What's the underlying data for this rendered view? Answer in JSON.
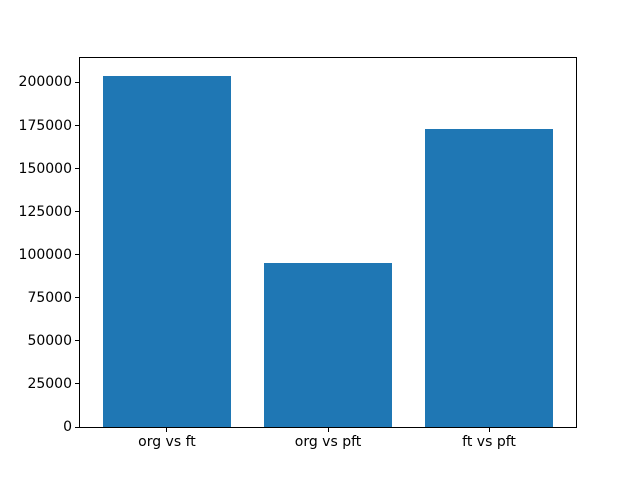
{
  "figure": {
    "background_color": "#ffffff",
    "spine_color": "#000000",
    "text_color": "#000000"
  },
  "chart_data": {
    "type": "bar",
    "title": "",
    "xlabel": "",
    "ylabel": "",
    "categories": [
      "org vs ft",
      "org vs pft",
      "ft vs pft"
    ],
    "values": [
      204000,
      95000,
      173000
    ],
    "bar_color": "#1f77b4",
    "ylim": [
      0,
      214200
    ],
    "yticks": [
      0,
      25000,
      50000,
      75000,
      100000,
      125000,
      150000,
      175000,
      200000
    ],
    "grid": false,
    "legend": false
  }
}
